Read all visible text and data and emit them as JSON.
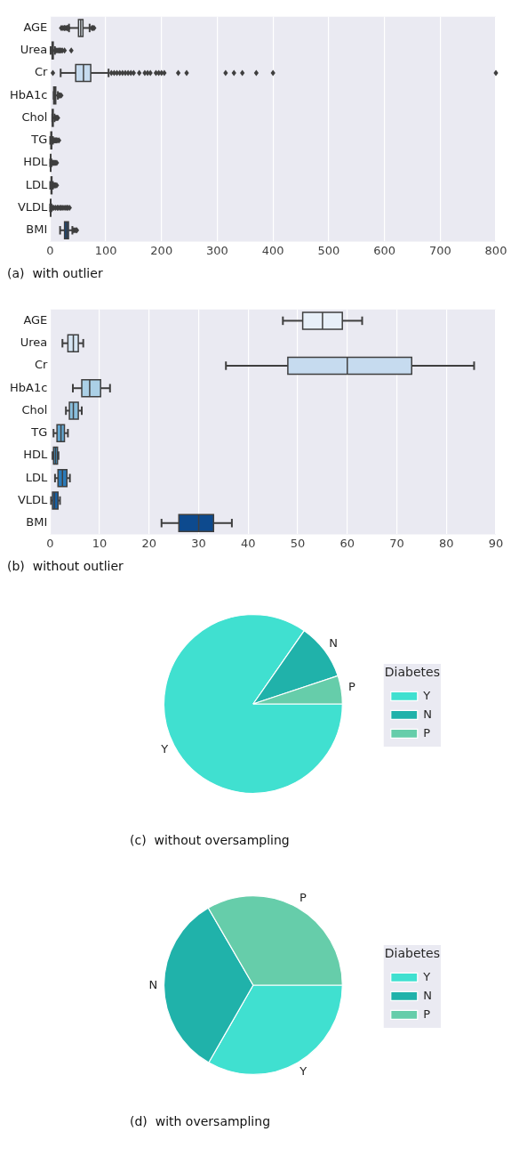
{
  "chart_data": [
    {
      "type": "box",
      "orientation": "horizontal",
      "title": "(a)  with outlier",
      "categories": [
        "AGE",
        "Urea",
        "Cr",
        "HbA1c",
        "Chol",
        "TG",
        "HDL",
        "LDL",
        "VLDL",
        "BMI"
      ],
      "boxes": [
        {
          "low": 34,
          "q1": 51,
          "median": 55,
          "q3": 59,
          "high": 71,
          "outliers": [
            20,
            22,
            25,
            26,
            28,
            30,
            31,
            32,
            33,
            75,
            77,
            79
          ]
        },
        {
          "low": 1,
          "q1": 3.7,
          "median": 4.6,
          "q3": 5.7,
          "high": 8.6,
          "outliers": [
            9,
            10,
            12,
            14,
            16,
            18,
            20,
            22,
            26,
            38
          ]
        },
        {
          "low": 19,
          "q1": 46,
          "median": 60,
          "q3": 73,
          "high": 105,
          "outliers": [
            5,
            110,
            115,
            120,
            125,
            130,
            135,
            140,
            145,
            150,
            160,
            170,
            175,
            180,
            190,
            195,
            200,
            205,
            230,
            245,
            315,
            330,
            345,
            370,
            400,
            800
          ]
        },
        {
          "low": 6.5,
          "q1": 6.5,
          "median": 8,
          "q3": 10.2,
          "high": 14,
          "outliers": [
            15,
            16,
            17,
            18,
            20
          ]
        },
        {
          "low": 4,
          "q1": 4,
          "median": 4.8,
          "q3": 5.6,
          "high": 8,
          "outliers": [
            9,
            10,
            11,
            12,
            13,
            14
          ]
        },
        {
          "low": 0.3,
          "q1": 1.4,
          "median": 2.2,
          "q3": 3,
          "high": 5,
          "outliers": [
            6,
            7,
            8,
            9,
            10,
            11,
            12,
            13.6,
            16
          ]
        },
        {
          "low": 0.2,
          "q1": 0.8,
          "median": 1.1,
          "q3": 1.5,
          "high": 2.5,
          "outliers": [
            3,
            4,
            5,
            6,
            7,
            8,
            9.9,
            12
          ]
        },
        {
          "low": 0.3,
          "q1": 1.8,
          "median": 2.6,
          "q3": 3.3,
          "high": 5,
          "outliers": [
            6,
            7,
            8,
            9,
            9.9,
            12
          ]
        },
        {
          "low": 0.1,
          "q1": 0.7,
          "median": 0.9,
          "q3": 1.5,
          "high": 2.5,
          "outliers": [
            3,
            5,
            7,
            10,
            13,
            15,
            18,
            20,
            22,
            25,
            28,
            30,
            32,
            35
          ]
        },
        {
          "low": 18,
          "q1": 26,
          "median": 30,
          "q3": 33,
          "high": 40,
          "outliers": [
            42,
            44,
            46,
            48
          ]
        }
      ],
      "colors": [
        "#e8f0f9",
        "#d6e6f4",
        "#c6dbef",
        "#abd0e6",
        "#89bedc",
        "#64a8d3",
        "#4292c6",
        "#2b7bba",
        "#1863aa",
        "#0d4a8e"
      ],
      "xlim": [
        0,
        800
      ],
      "xticks": [
        0,
        100,
        200,
        300,
        400,
        500,
        600,
        700,
        800
      ],
      "grid": "x",
      "marker": "diamond"
    },
    {
      "type": "box",
      "orientation": "horizontal",
      "title": "(b)  without outlier",
      "categories": [
        "AGE",
        "Urea",
        "Cr",
        "HbA1c",
        "Chol",
        "TG",
        "HDL",
        "LDL",
        "VLDL",
        "BMI"
      ],
      "boxes": [
        {
          "low": 47,
          "q1": 51,
          "median": 55,
          "q3": 59,
          "high": 63
        },
        {
          "low": 2.5,
          "q1": 3.6,
          "median": 4.7,
          "q3": 5.7,
          "high": 6.7
        },
        {
          "low": 35.5,
          "q1": 48,
          "median": 60,
          "q3": 73,
          "high": 85.6
        },
        {
          "low": 4.6,
          "q1": 6.4,
          "median": 8,
          "q3": 10.2,
          "high": 12.1
        },
        {
          "low": 3.2,
          "q1": 3.9,
          "median": 4.7,
          "q3": 5.7,
          "high": 6.4
        },
        {
          "low": 0.7,
          "q1": 1.4,
          "median": 2.2,
          "q3": 2.9,
          "high": 3.6
        },
        {
          "low": 0.5,
          "q1": 0.7,
          "median": 1.1,
          "q3": 1.5,
          "high": 1.7
        },
        {
          "low": 1,
          "q1": 1.6,
          "median": 2.5,
          "q3": 3.4,
          "high": 4
        },
        {
          "low": 0.2,
          "q1": 0.5,
          "median": 0.9,
          "q3": 1.6,
          "high": 2
        },
        {
          "low": 22.5,
          "q1": 26,
          "median": 30,
          "q3": 33,
          "high": 36.7
        }
      ],
      "colors": [
        "#e8f0f9",
        "#d6e6f4",
        "#c6dbef",
        "#abd0e6",
        "#89bedc",
        "#64a8d3",
        "#4292c6",
        "#2b7bba",
        "#1863aa",
        "#0d4a8e"
      ],
      "xlim": [
        0,
        90
      ],
      "xticks": [
        0,
        10,
        20,
        30,
        40,
        50,
        60,
        70,
        80,
        90
      ],
      "grid": "x"
    },
    {
      "type": "pie",
      "title": "(c)  without oversampling",
      "categories": [
        "Y",
        "N",
        "P"
      ],
      "values": [
        84.7,
        10.2,
        5.1
      ],
      "colors": [
        "#40e0d0",
        "#20b2aa",
        "#66cdaa"
      ],
      "legend": "right",
      "legend_title": "Diabetes"
    },
    {
      "type": "pie",
      "title": "(d)  with oversampling",
      "categories": [
        "Y",
        "N",
        "P"
      ],
      "values": [
        33.3,
        33.3,
        33.4
      ],
      "colors": [
        "#40e0d0",
        "#20b2aa",
        "#66cdaa"
      ],
      "legend": "right",
      "legend_title": "Diabetes"
    }
  ]
}
